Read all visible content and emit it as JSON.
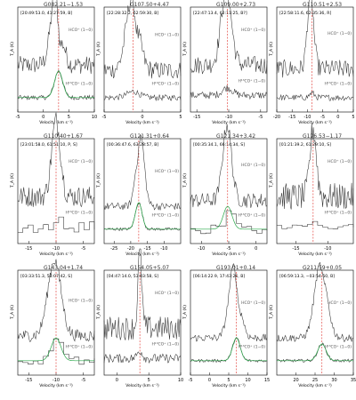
{
  "figure": {
    "description": "Grid of 12 spectral line panels (HCO+ and H13CO+ J=1-0) of cold clumps",
    "ylabel": "T_A (K)",
    "xlabel": "Velocity (km s⁻¹)"
  },
  "chart_data": [
    {
      "type": "line",
      "title": "G082.21−1.53",
      "label": "[20:49:53.0, 41:27:59, B]",
      "vline": 3,
      "xlim": [
        -5,
        10
      ],
      "xticks": [
        -5,
        0,
        5,
        10
      ],
      "series": [
        {
          "name": "HCO⁺ (1−0)",
          "peak": 1.0,
          "center": 2.5,
          "width": 1.0,
          "noise": 0.12,
          "offset": 0.55,
          "absorb": {
            "center": 3.2,
            "depth": 0.45,
            "width": 0.4
          }
        },
        {
          "name": "H¹³CO⁺ (1−0)",
          "peak": 0.35,
          "center": 3.0,
          "width": 0.8,
          "noise": 0.03,
          "offset": 0.12,
          "fit": true
        }
      ]
    },
    {
      "type": "line",
      "title": "G107.50+4.47",
      "label": "[22:28:32.2, 62:59:30, B]",
      "vline": -1.2,
      "xlim": [
        -5,
        5
      ],
      "xticks": [
        -5,
        0,
        5
      ],
      "series": [
        {
          "name": "HCO⁺ (1−0)",
          "peak": 1.0,
          "center": -1.3,
          "width": 0.8,
          "noise": 0.12,
          "offset": 0.48,
          "absorb": {
            "center": -0.8,
            "depth": 0.25,
            "width": 0.3
          }
        },
        {
          "name": "H¹³CO⁺ (1−0)",
          "peak": 0.08,
          "center": -1.2,
          "width": 0.8,
          "noise": 0.04,
          "offset": 0.12,
          "fit": false
        }
      ]
    },
    {
      "type": "line",
      "title": "G109.00+2.73",
      "label": "[22:47:13.4, 62:11:25, B?]",
      "vline": -10.2,
      "xlim": [
        -16,
        -4
      ],
      "xticks": [
        -15,
        -10,
        -5
      ],
      "series": [
        {
          "name": "HCO⁺ (1−0)",
          "peak": 1.0,
          "center": -10.4,
          "width": 0.8,
          "noise": 0.12,
          "offset": 0.55
        },
        {
          "name": "H¹³CO⁺ (1−0)",
          "peak": 0.1,
          "center": -10.2,
          "width": 0.8,
          "noise": 0.05,
          "offset": 0.15,
          "fit": false
        }
      ]
    },
    {
      "type": "line",
      "title": "G110.51+2.53",
      "label": "[22:58:11.6, 62:35:36, R]",
      "vline": -8.5,
      "xlim": [
        -20,
        5
      ],
      "xticks": [
        -20,
        -15,
        -10,
        -5,
        0,
        5
      ],
      "series": [
        {
          "name": "HCO⁺ (1−0)",
          "peak": 1.0,
          "center": -9.0,
          "width": 1.0,
          "noise": 0.12,
          "offset": 0.5
        },
        {
          "name": "H¹³CO⁺ (1−0)",
          "peak": 0.06,
          "center": -8.5,
          "width": 0.8,
          "noise": 0.04,
          "offset": 0.12,
          "fit": false
        }
      ]
    },
    {
      "type": "line",
      "title": "G110.40+1.67",
      "label": "[23:01:58.0, 61:51:10, P, S]",
      "vline": -10.0,
      "xlim": [
        -17,
        -3
      ],
      "xticks": [
        -15,
        -10,
        -5
      ],
      "series": [
        {
          "name": "HCO⁺ (1−0)",
          "peak": 1.0,
          "center": -10.0,
          "width": 0.8,
          "noise": 0.14,
          "offset": 0.55
        },
        {
          "name": "H¹³CO⁺ (1−0)",
          "peak": 0.1,
          "center": -10.0,
          "width": 1.0,
          "noise": 0.08,
          "offset": 0.15,
          "fit": false,
          "stepped": true
        }
      ]
    },
    {
      "type": "line",
      "title": "G121.31+0.64",
      "label": "[00:36:47.6, 63:28:57, B]",
      "vline": -17.6,
      "xlim": [
        -28,
        -5
      ],
      "xticks": [
        -25,
        -20,
        -15,
        -10
      ],
      "series": [
        {
          "name": "HCO⁺ (1−0)",
          "peak": 1.0,
          "center": -17.2,
          "width": 1.2,
          "noise": 0.05,
          "offset": 0.42,
          "absorb": {
            "center": -17.8,
            "depth": 0.2,
            "width": 0.5
          }
        },
        {
          "name": "H¹³CO⁺ (1−0)",
          "peak": 0.35,
          "center": -17.6,
          "width": 1.0,
          "noise": 0.02,
          "offset": 0.12,
          "fit": true
        }
      ]
    },
    {
      "type": "line",
      "title": "G121.34+3.42",
      "label": "[00:35:34.1, 66:14:34, S]",
      "vline": -5.2,
      "xlim": [
        -12,
        2
      ],
      "xticks": [
        -10,
        -5,
        0
      ],
      "series": [
        {
          "name": "HCO⁺ (1−0)",
          "peak": 1.0,
          "center": -5.3,
          "width": 0.8,
          "noise": 0.1,
          "offset": 0.5
        },
        {
          "name": "H¹³CO⁺ (1−0)",
          "peak": 0.3,
          "center": -5.2,
          "width": 0.8,
          "noise": 0.06,
          "offset": 0.12,
          "fit": true,
          "stepped": true
        }
      ]
    },
    {
      "type": "line",
      "title": "G126.53−1.17",
      "label": "[01:21:39.2, 61:29:10, S]",
      "vline": -12.3,
      "xlim": [
        -18,
        -6
      ],
      "xticks": [
        -15,
        -10
      ],
      "series": [
        {
          "name": "HCO⁺ (1−0)",
          "peak": 0.9,
          "center": -12.3,
          "width": 0.5,
          "noise": 0.18,
          "offset": 0.55
        },
        {
          "name": "H¹³CO⁺ (1−0)",
          "peak": 0.1,
          "center": -12.3,
          "width": 0.8,
          "noise": 0.05,
          "offset": 0.15,
          "fit": false,
          "stepped": true
        }
      ]
    },
    {
      "type": "line",
      "title": "G143.04+1.74",
      "label": "[03:33:51.3, 58:07:42, S]",
      "vline": -10.0,
      "xlim": [
        -17,
        -3
      ],
      "xticks": [
        -15,
        -10,
        -5
      ],
      "series": [
        {
          "name": "HCO⁺ (1−0)",
          "peak": 1.0,
          "center": -10.3,
          "width": 1.2,
          "noise": 0.08,
          "offset": 0.45
        },
        {
          "name": "H¹³CO⁺ (1−0)",
          "peak": 0.3,
          "center": -10.0,
          "width": 0.9,
          "noise": 0.05,
          "offset": 0.12,
          "fit": true,
          "stepped": true
        }
      ]
    },
    {
      "type": "line",
      "title": "G154.05+5.07",
      "label": "[04:47:14.0, 53:03:58, S]",
      "vline": 3.6,
      "xlim": [
        -2,
        10
      ],
      "xticks": [
        0,
        5,
        10
      ],
      "series": [
        {
          "name": "HCO⁺ (1−0)",
          "peak": 1.0,
          "center": 3.6,
          "width": 0.3,
          "noise": 0.16,
          "offset": 0.55
        },
        {
          "name": "H¹³CO⁺ (1−0)",
          "peak": 0.1,
          "center": 3.6,
          "width": 0.4,
          "noise": 0.06,
          "offset": 0.15,
          "fit": false
        }
      ]
    },
    {
      "type": "line",
      "title": "G193.01+0.14",
      "label": "[06:14:22.9, 17:43:26, B]",
      "vline": 7.0,
      "xlim": [
        -5,
        15
      ],
      "xticks": [
        -5,
        0,
        5,
        10,
        15
      ],
      "series": [
        {
          "name": "HCO⁺ (1−0)",
          "peak": 1.0,
          "center": 6.5,
          "width": 1.4,
          "noise": 0.05,
          "offset": 0.42,
          "absorb": {
            "center": 7.5,
            "depth": 0.3,
            "width": 0.6
          }
        },
        {
          "name": "H¹³CO⁺ (1−0)",
          "peak": 0.3,
          "center": 7.0,
          "width": 1.0,
          "noise": 0.02,
          "offset": 0.12,
          "fit": true
        }
      ]
    },
    {
      "type": "line",
      "title": "G211.59+0.05",
      "label": "[06:59:13.3, −03:54:50, B]",
      "vline": 26.8,
      "xlim": [
        15,
        35
      ],
      "xticks": [
        20,
        25,
        30,
        35
      ],
      "series": [
        {
          "name": "HCO⁺ (1−0)",
          "peak": 1.0,
          "center": 26.5,
          "width": 1.6,
          "noise": 0.05,
          "offset": 0.42,
          "absorb": {
            "center": 27.2,
            "depth": 0.15,
            "width": 0.5
          }
        },
        {
          "name": "H¹³CO⁺ (1−0)",
          "peak": 0.22,
          "center": 26.8,
          "width": 1.1,
          "noise": 0.02,
          "offset": 0.12,
          "fit": true
        }
      ]
    }
  ]
}
